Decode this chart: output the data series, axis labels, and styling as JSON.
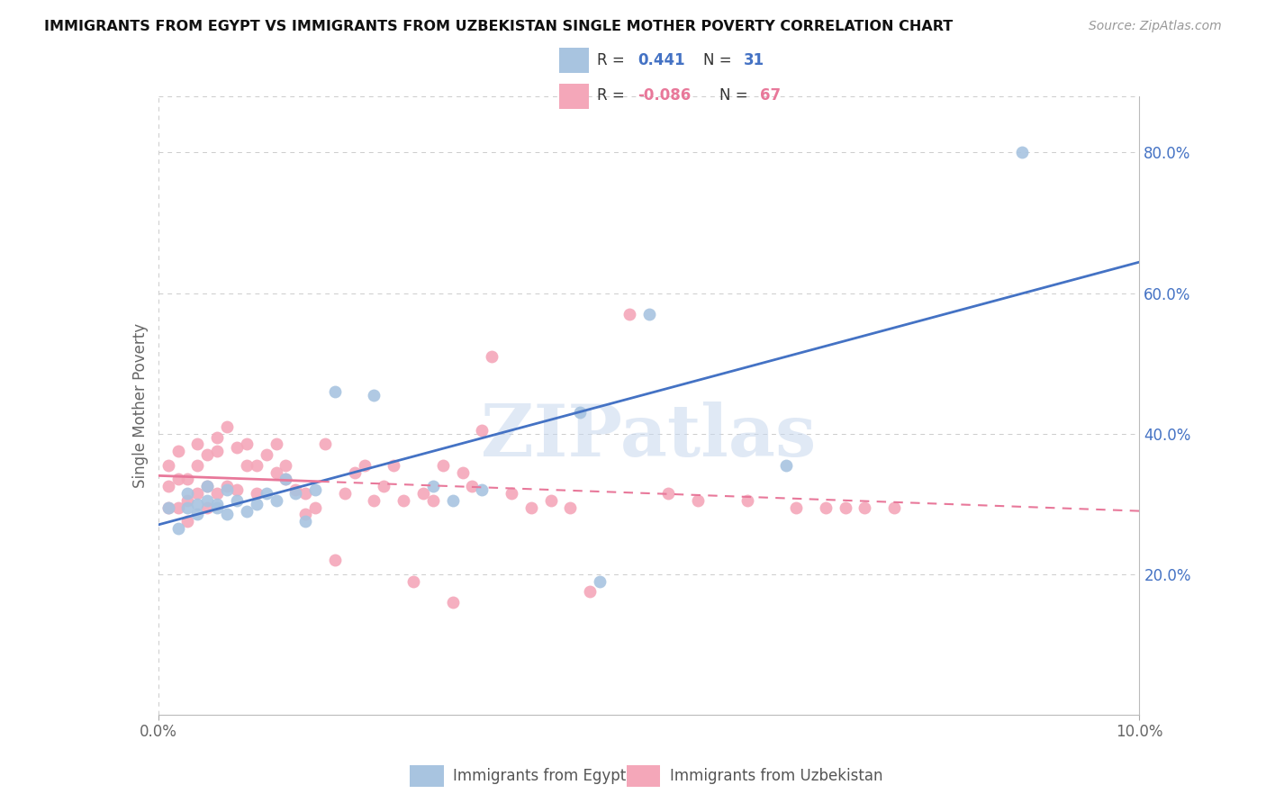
{
  "title": "IMMIGRANTS FROM EGYPT VS IMMIGRANTS FROM UZBEKISTAN SINGLE MOTHER POVERTY CORRELATION CHART",
  "source": "Source: ZipAtlas.com",
  "ylabel": "Single Mother Poverty",
  "xlim": [
    0.0,
    0.1
  ],
  "ylim": [
    0.0,
    0.88
  ],
  "yticks": [
    0.2,
    0.4,
    0.6,
    0.8
  ],
  "ytick_labels": [
    "20.0%",
    "40.0%",
    "60.0%",
    "80.0%"
  ],
  "xticks": [
    0.0,
    0.1
  ],
  "xtick_labels": [
    "0.0%",
    "10.0%"
  ],
  "legend_egypt_R": "0.441",
  "legend_egypt_N": "31",
  "legend_uzbek_R": "-0.086",
  "legend_uzbek_N": "67",
  "legend_label_egypt": "Immigrants from Egypt",
  "legend_label_uzbek": "Immigrants from Uzbekistan",
  "color_egypt": "#a8c4e0",
  "color_uzbek": "#f4a7b9",
  "trendline_egypt_color": "#4472c4",
  "trendline_uzbek_color": "#e8789a",
  "watermark": "ZIPatlas",
  "background_color": "#ffffff",
  "grid_color": "#cccccc",
  "egypt_x": [
    0.001,
    0.002,
    0.003,
    0.003,
    0.004,
    0.004,
    0.005,
    0.005,
    0.006,
    0.006,
    0.007,
    0.007,
    0.008,
    0.009,
    0.01,
    0.011,
    0.012,
    0.013,
    0.014,
    0.015,
    0.016,
    0.018,
    0.022,
    0.028,
    0.03,
    0.033,
    0.043,
    0.045,
    0.05,
    0.064,
    0.088
  ],
  "egypt_y": [
    0.295,
    0.265,
    0.295,
    0.315,
    0.285,
    0.3,
    0.305,
    0.325,
    0.295,
    0.3,
    0.32,
    0.285,
    0.305,
    0.29,
    0.3,
    0.315,
    0.305,
    0.335,
    0.315,
    0.275,
    0.32,
    0.46,
    0.455,
    0.325,
    0.305,
    0.32,
    0.43,
    0.19,
    0.57,
    0.355,
    0.8
  ],
  "uzbek_x": [
    0.001,
    0.001,
    0.001,
    0.002,
    0.002,
    0.002,
    0.003,
    0.003,
    0.003,
    0.004,
    0.004,
    0.004,
    0.005,
    0.005,
    0.005,
    0.006,
    0.006,
    0.006,
    0.007,
    0.007,
    0.008,
    0.008,
    0.009,
    0.009,
    0.01,
    0.01,
    0.011,
    0.012,
    0.012,
    0.013,
    0.013,
    0.014,
    0.015,
    0.015,
    0.016,
    0.017,
    0.018,
    0.019,
    0.02,
    0.021,
    0.022,
    0.023,
    0.024,
    0.025,
    0.026,
    0.027,
    0.028,
    0.029,
    0.03,
    0.031,
    0.032,
    0.033,
    0.034,
    0.036,
    0.038,
    0.04,
    0.042,
    0.044,
    0.048,
    0.052,
    0.055,
    0.06,
    0.065,
    0.068,
    0.07,
    0.072,
    0.075
  ],
  "uzbek_y": [
    0.295,
    0.325,
    0.355,
    0.295,
    0.335,
    0.375,
    0.275,
    0.305,
    0.335,
    0.315,
    0.355,
    0.385,
    0.295,
    0.325,
    0.37,
    0.315,
    0.375,
    0.395,
    0.325,
    0.41,
    0.32,
    0.38,
    0.355,
    0.385,
    0.355,
    0.315,
    0.37,
    0.345,
    0.385,
    0.335,
    0.355,
    0.32,
    0.315,
    0.285,
    0.295,
    0.385,
    0.22,
    0.315,
    0.345,
    0.355,
    0.305,
    0.325,
    0.355,
    0.305,
    0.19,
    0.315,
    0.305,
    0.355,
    0.16,
    0.345,
    0.325,
    0.405,
    0.51,
    0.315,
    0.295,
    0.305,
    0.295,
    0.175,
    0.57,
    0.315,
    0.305,
    0.305,
    0.295,
    0.295,
    0.295,
    0.295,
    0.295
  ]
}
